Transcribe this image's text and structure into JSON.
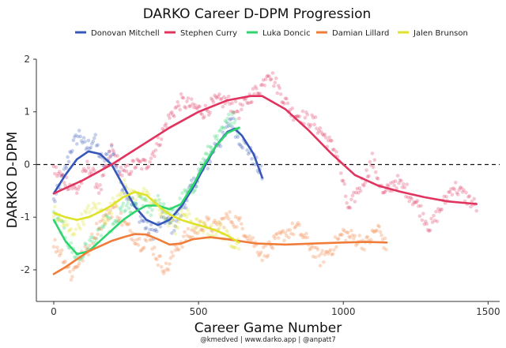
{
  "chart_data": {
    "type": "scatter",
    "title": "DARKO Career D-DPM Progression",
    "xlabel": "Career Game Number",
    "ylabel": "DARKO D-DPM",
    "caption": "@kmedved | www.darko.app | @anpatt7",
    "xlim": [
      -60,
      1540
    ],
    "ylim": [
      -2.6,
      2.0
    ],
    "x_ticks": [
      0,
      500,
      1000,
      1500
    ],
    "y_ticks": [
      -2,
      -1,
      0,
      1,
      2
    ],
    "grid": false,
    "legend_position": "top",
    "reference_line": {
      "y": 0,
      "style": "dashed"
    },
    "series": [
      {
        "name": "Donovan Mitchell",
        "color": "#3757b8",
        "games": 720,
        "trend": [
          [
            0,
            -0.55
          ],
          [
            40,
            -0.2
          ],
          [
            80,
            0.1
          ],
          [
            120,
            0.25
          ],
          [
            160,
            0.2
          ],
          [
            200,
            0.0
          ],
          [
            240,
            -0.4
          ],
          [
            280,
            -0.8
          ],
          [
            320,
            -1.05
          ],
          [
            360,
            -1.15
          ],
          [
            400,
            -1.05
          ],
          [
            440,
            -0.8
          ],
          [
            480,
            -0.45
          ],
          [
            520,
            -0.05
          ],
          [
            560,
            0.35
          ],
          [
            600,
            0.62
          ],
          [
            625,
            0.68
          ],
          [
            650,
            0.55
          ],
          [
            690,
            0.2
          ],
          [
            720,
            -0.25
          ]
        ],
        "path": [
          [
            0,
            -0.7
          ],
          [
            30,
            -0.3
          ],
          [
            60,
            0.3
          ],
          [
            90,
            0.6
          ],
          [
            110,
            0.3
          ],
          [
            140,
            0.5
          ],
          [
            170,
            0.0
          ],
          [
            200,
            0.3
          ],
          [
            230,
            -0.3
          ],
          [
            260,
            -0.6
          ],
          [
            290,
            -0.9
          ],
          [
            320,
            -1.2
          ],
          [
            350,
            -1.3
          ],
          [
            380,
            -1.0
          ],
          [
            410,
            -1.2
          ],
          [
            440,
            -0.9
          ],
          [
            470,
            -0.5
          ],
          [
            500,
            -0.2
          ],
          [
            530,
            0.0
          ],
          [
            560,
            0.4
          ],
          [
            590,
            0.5
          ],
          [
            610,
            0.9
          ],
          [
            640,
            0.5
          ],
          [
            670,
            0.3
          ],
          [
            700,
            0.0
          ],
          [
            720,
            -0.2
          ]
        ]
      },
      {
        "name": "Stephen Curry",
        "color": "#e0345e",
        "games": 1460,
        "trend": [
          [
            0,
            -0.55
          ],
          [
            100,
            -0.3
          ],
          [
            200,
            0.0
          ],
          [
            300,
            0.35
          ],
          [
            400,
            0.7
          ],
          [
            500,
            1.0
          ],
          [
            600,
            1.22
          ],
          [
            680,
            1.3
          ],
          [
            720,
            1.3
          ],
          [
            800,
            1.05
          ],
          [
            880,
            0.65
          ],
          [
            960,
            0.2
          ],
          [
            1040,
            -0.2
          ],
          [
            1120,
            -0.4
          ],
          [
            1200,
            -0.52
          ],
          [
            1280,
            -0.62
          ],
          [
            1360,
            -0.7
          ],
          [
            1460,
            -0.75
          ]
        ],
        "path": [
          [
            0,
            -0.1
          ],
          [
            40,
            -0.3
          ],
          [
            80,
            -0.5
          ],
          [
            120,
            0.0
          ],
          [
            160,
            -0.5
          ],
          [
            200,
            0.3
          ],
          [
            240,
            -0.2
          ],
          [
            280,
            0.0
          ],
          [
            320,
            0.0
          ],
          [
            360,
            0.4
          ],
          [
            400,
            0.9
          ],
          [
            440,
            1.2
          ],
          [
            480,
            1.1
          ],
          [
            520,
            1.0
          ],
          [
            560,
            1.2
          ],
          [
            600,
            1.2
          ],
          [
            640,
            1.0
          ],
          [
            680,
            1.3
          ],
          [
            720,
            1.5
          ],
          [
            740,
            1.8
          ],
          [
            780,
            1.4
          ],
          [
            820,
            1.0
          ],
          [
            860,
            0.9
          ],
          [
            900,
            0.8
          ],
          [
            940,
            0.5
          ],
          [
            980,
            0.2
          ],
          [
            1000,
            -0.4
          ],
          [
            1020,
            -0.9
          ],
          [
            1040,
            -0.6
          ],
          [
            1080,
            -0.2
          ],
          [
            1100,
            0.1
          ],
          [
            1140,
            -0.6
          ],
          [
            1180,
            -0.3
          ],
          [
            1220,
            -0.5
          ],
          [
            1260,
            -0.8
          ],
          [
            1300,
            -1.2
          ],
          [
            1340,
            -0.8
          ],
          [
            1380,
            -0.4
          ],
          [
            1420,
            -0.6
          ],
          [
            1460,
            -0.8
          ]
        ]
      },
      {
        "name": "Luka Doncic",
        "color": "#2ed46e",
        "games": 640,
        "trend": [
          [
            0,
            -1.05
          ],
          [
            40,
            -1.45
          ],
          [
            80,
            -1.7
          ],
          [
            120,
            -1.65
          ],
          [
            160,
            -1.45
          ],
          [
            200,
            -1.25
          ],
          [
            240,
            -1.05
          ],
          [
            280,
            -0.9
          ],
          [
            320,
            -0.78
          ],
          [
            360,
            -0.78
          ],
          [
            400,
            -0.85
          ],
          [
            440,
            -0.75
          ],
          [
            480,
            -0.4
          ],
          [
            520,
            0.0
          ],
          [
            560,
            0.35
          ],
          [
            600,
            0.6
          ],
          [
            640,
            0.7
          ]
        ],
        "path": [
          [
            0,
            -1.0
          ],
          [
            30,
            -1.2
          ],
          [
            60,
            -1.6
          ],
          [
            90,
            -1.8
          ],
          [
            120,
            -1.5
          ],
          [
            150,
            -1.4
          ],
          [
            180,
            -1.1
          ],
          [
            210,
            -1.2
          ],
          [
            240,
            -0.8
          ],
          [
            270,
            -0.9
          ],
          [
            300,
            -0.6
          ],
          [
            330,
            -0.9
          ],
          [
            360,
            -0.6
          ],
          [
            390,
            -1.0
          ],
          [
            420,
            -0.9
          ],
          [
            450,
            -0.6
          ],
          [
            480,
            -0.5
          ],
          [
            510,
            0.0
          ],
          [
            540,
            0.3
          ],
          [
            570,
            0.5
          ],
          [
            600,
            0.8
          ],
          [
            620,
            1.0
          ],
          [
            640,
            0.6
          ]
        ]
      },
      {
        "name": "Damian Lillard",
        "color": "#f07c3a",
        "games": 1150,
        "trend": [
          [
            0,
            -2.08
          ],
          [
            40,
            -1.95
          ],
          [
            80,
            -1.8
          ],
          [
            120,
            -1.65
          ],
          [
            160,
            -1.55
          ],
          [
            200,
            -1.45
          ],
          [
            240,
            -1.38
          ],
          [
            280,
            -1.32
          ],
          [
            320,
            -1.33
          ],
          [
            360,
            -1.42
          ],
          [
            400,
            -1.52
          ],
          [
            440,
            -1.5
          ],
          [
            480,
            -1.42
          ],
          [
            540,
            -1.38
          ],
          [
            600,
            -1.42
          ],
          [
            700,
            -1.5
          ],
          [
            800,
            -1.52
          ],
          [
            900,
            -1.5
          ],
          [
            1000,
            -1.48
          ],
          [
            1080,
            -1.47
          ],
          [
            1150,
            -1.48
          ]
        ],
        "path": [
          [
            0,
            -1.5
          ],
          [
            30,
            -1.7
          ],
          [
            60,
            -2.1
          ],
          [
            90,
            -1.8
          ],
          [
            120,
            -1.6
          ],
          [
            150,
            -1.2
          ],
          [
            180,
            -1.0
          ],
          [
            210,
            -0.8
          ],
          [
            240,
            -1.1
          ],
          [
            270,
            -1.3
          ],
          [
            300,
            -1.5
          ],
          [
            330,
            -1.4
          ],
          [
            360,
            -1.8
          ],
          [
            390,
            -2.0
          ],
          [
            420,
            -1.6
          ],
          [
            450,
            -1.4
          ],
          [
            480,
            -1.3
          ],
          [
            520,
            -1.1
          ],
          [
            560,
            -1.2
          ],
          [
            600,
            -1.0
          ],
          [
            640,
            -1.1
          ],
          [
            680,
            -1.4
          ],
          [
            720,
            -1.7
          ],
          [
            760,
            -1.5
          ],
          [
            800,
            -1.3
          ],
          [
            840,
            -1.2
          ],
          [
            880,
            -1.5
          ],
          [
            920,
            -1.8
          ],
          [
            960,
            -1.6
          ],
          [
            1000,
            -1.3
          ],
          [
            1040,
            -1.4
          ],
          [
            1080,
            -1.5
          ],
          [
            1120,
            -1.2
          ],
          [
            1150,
            -1.6
          ]
        ]
      },
      {
        "name": "Jalen Brunson",
        "color": "#dfe22a",
        "games": 640,
        "trend": [
          [
            0,
            -0.92
          ],
          [
            40,
            -1.0
          ],
          [
            80,
            -1.05
          ],
          [
            120,
            -1.0
          ],
          [
            160,
            -0.9
          ],
          [
            200,
            -0.78
          ],
          [
            240,
            -0.62
          ],
          [
            280,
            -0.52
          ],
          [
            320,
            -0.58
          ],
          [
            360,
            -0.78
          ],
          [
            400,
            -0.95
          ],
          [
            440,
            -1.05
          ],
          [
            480,
            -1.12
          ],
          [
            520,
            -1.18
          ],
          [
            560,
            -1.25
          ],
          [
            600,
            -1.35
          ],
          [
            640,
            -1.48
          ]
        ],
        "path": [
          [
            0,
            -0.9
          ],
          [
            30,
            -1.1
          ],
          [
            60,
            -1.3
          ],
          [
            90,
            -1.1
          ],
          [
            120,
            -0.9
          ],
          [
            150,
            -0.8
          ],
          [
            180,
            -1.0
          ],
          [
            210,
            -0.7
          ],
          [
            240,
            -0.4
          ],
          [
            270,
            -0.6
          ],
          [
            300,
            -0.5
          ],
          [
            330,
            -0.7
          ],
          [
            360,
            -0.8
          ],
          [
            390,
            -1.0
          ],
          [
            420,
            -1.2
          ],
          [
            450,
            -0.9
          ],
          [
            480,
            -1.1
          ],
          [
            510,
            -1.2
          ],
          [
            540,
            -1.3
          ],
          [
            570,
            -1.2
          ],
          [
            600,
            -1.4
          ],
          [
            640,
            -1.5
          ]
        ]
      }
    ]
  }
}
